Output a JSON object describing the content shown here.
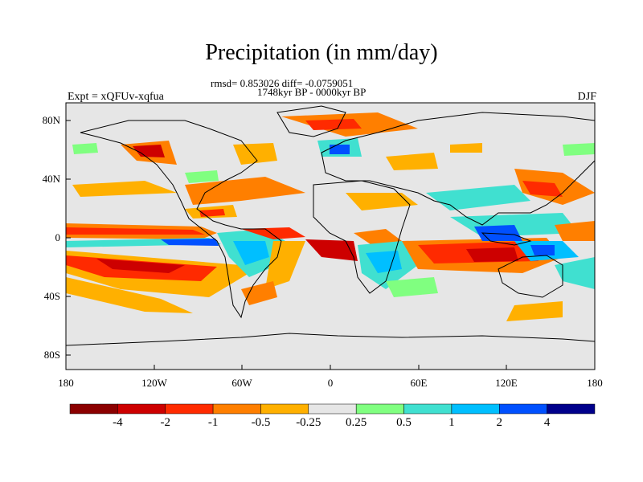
{
  "title": "Precipitation (in mm/day)",
  "stats_line": "rmsd= 0.853026 diff= -0.0759051",
  "period": "1748kyr BP - 0000kyr BP",
  "experiment": "Expt = xQFUv-xqfua",
  "season": "DJF",
  "lat_ticks": [
    "80N",
    "40N",
    "0",
    "40S",
    "80S"
  ],
  "lon_ticks": [
    "180",
    "120W",
    "60W",
    "0",
    "60E",
    "120E",
    "180"
  ],
  "colorbar": {
    "labels": [
      "-4",
      "-2",
      "-1",
      "-0.5",
      "-0.25",
      "0.25",
      "0.5",
      "1",
      "2",
      "4"
    ],
    "colors": [
      "#8b0000",
      "#cd0000",
      "#ff2a00",
      "#ff7f00",
      "#ffb000",
      "#e6e6e6",
      "#80ff80",
      "#40e0d0",
      "#00bfff",
      "#0050ff",
      "#00008b"
    ]
  }
}
